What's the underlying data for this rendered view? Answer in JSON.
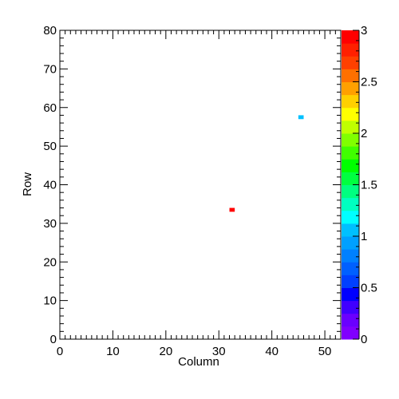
{
  "chart_data": {
    "type": "heatmap",
    "title": "",
    "xlabel": "Column",
    "ylabel": "Row",
    "xlim": [
      0,
      53
    ],
    "ylim": [
      0,
      80
    ],
    "zlim": [
      0,
      3
    ],
    "x_ticks": [
      "0",
      "10",
      "20",
      "30",
      "40",
      "50"
    ],
    "y_ticks": [
      "0",
      "10",
      "20",
      "30",
      "40",
      "50",
      "60",
      "70",
      "80"
    ],
    "colorbar_ticks": [
      "0",
      "0.5",
      "1",
      "1.5",
      "2",
      "2.5",
      "3"
    ],
    "cells": [
      {
        "column": 32,
        "row": 33,
        "value": 3
      },
      {
        "column": 45,
        "row": 57,
        "value": 1
      }
    ],
    "palette": [
      "#8000ff",
      "#6a00ff",
      "#4000ff",
      "#0000ff",
      "#0040ff",
      "#0060ff",
      "#0080ff",
      "#00a0ff",
      "#00c0ff",
      "#00ffff",
      "#00ffc0",
      "#00ff80",
      "#00ff40",
      "#00ff00",
      "#40ff00",
      "#80ff00",
      "#c0ff00",
      "#ffff00",
      "#ffd000",
      "#ffa000",
      "#ff7000",
      "#ff4000",
      "#ff2000",
      "#ff0000"
    ],
    "grid": false,
    "legend": "colorbar-right"
  }
}
